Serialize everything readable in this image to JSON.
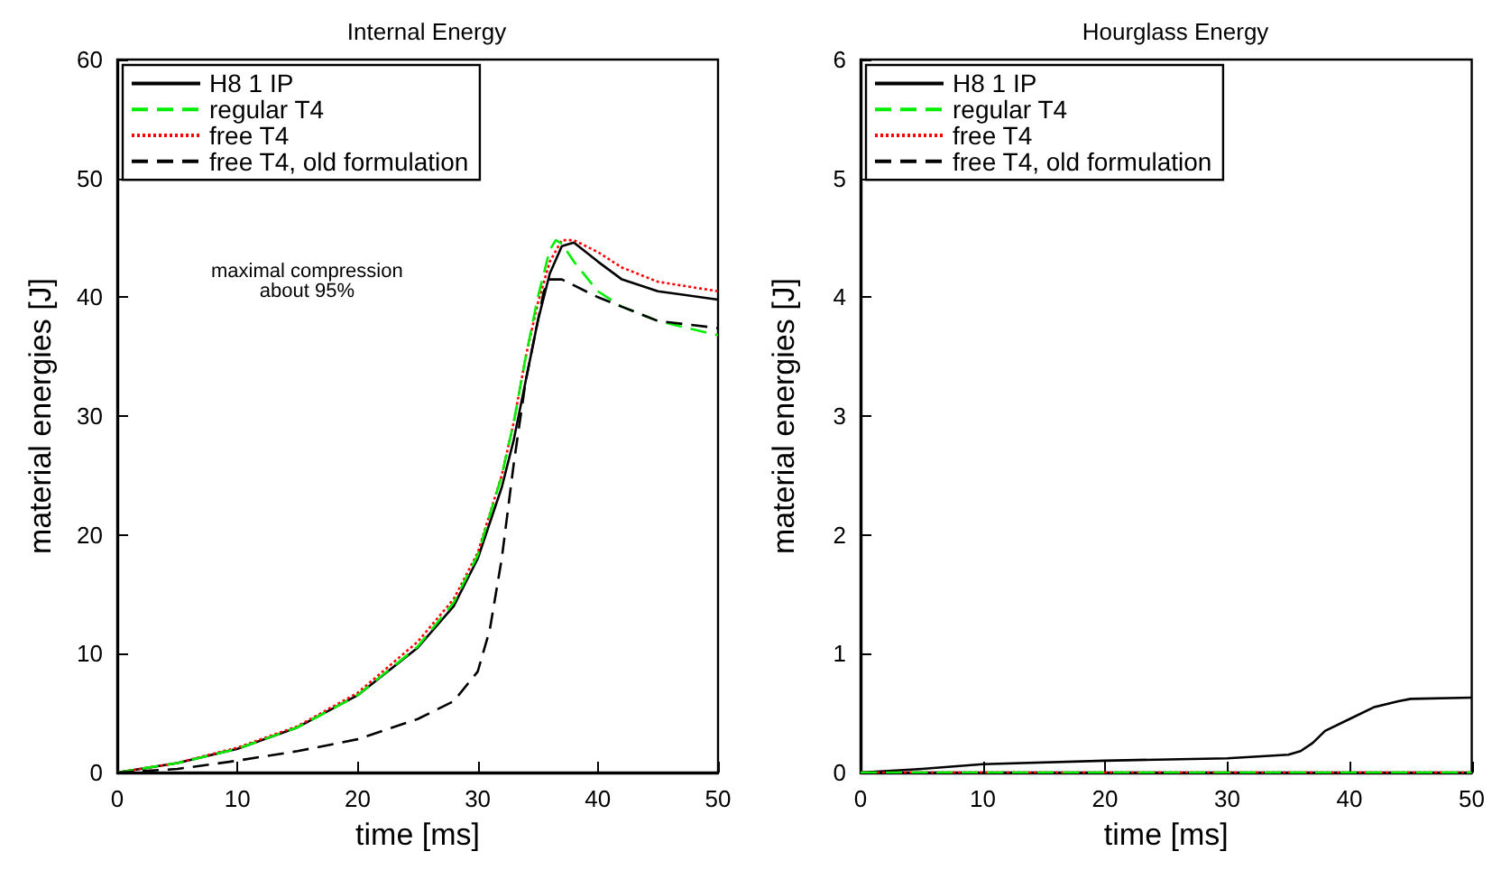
{
  "chart_data": [
    {
      "type": "line",
      "title": "Internal Energy",
      "xlabel": "time [ms]",
      "ylabel": "material energies [J]",
      "xlim": [
        0,
        50
      ],
      "xticks": [
        0,
        10,
        20,
        30,
        40,
        50
      ],
      "ylim": [
        0,
        60
      ],
      "yticks": [
        0,
        10,
        20,
        30,
        40,
        50,
        60
      ],
      "grid": false,
      "legend": "top left",
      "marker": "none",
      "annotations": [
        "maximal compression\nabout 95%"
      ],
      "series": [
        {
          "name": "H8 1 IP",
          "color": "#000000",
          "line_style": "solid",
          "x": [
            0,
            5,
            10,
            15,
            20,
            25,
            28,
            30,
            32,
            33,
            34,
            35,
            36,
            37,
            38,
            40,
            42,
            45,
            50
          ],
          "values": [
            0,
            0.8,
            2,
            3.8,
            6.5,
            10.5,
            14,
            18,
            24,
            28,
            33,
            38,
            42,
            44.3,
            44.6,
            43,
            41.5,
            40.5,
            39.8
          ]
        },
        {
          "name": "regular T4",
          "color": "#00ee00",
          "line_style": "dashed",
          "x": [
            0,
            5,
            10,
            15,
            20,
            25,
            28,
            30,
            32,
            33,
            34,
            35,
            36,
            36.5,
            37,
            38,
            40,
            42,
            45,
            50
          ],
          "values": [
            0,
            0.8,
            2,
            3.8,
            6.5,
            10.6,
            14.3,
            18.3,
            25,
            29.5,
            35,
            40,
            44,
            44.8,
            44.5,
            43,
            40.5,
            39.2,
            38,
            36.8
          ]
        },
        {
          "name": "free T4",
          "color": "#ff0000",
          "line_style": "dotted",
          "x": [
            0,
            5,
            10,
            15,
            20,
            25,
            28,
            30,
            32,
            33,
            34,
            35,
            36,
            37,
            38,
            40,
            42,
            45,
            50
          ],
          "values": [
            0,
            0.8,
            2.1,
            3.9,
            6.7,
            11,
            14.6,
            18.5,
            25,
            29.5,
            35,
            39.5,
            43,
            44.8,
            44.8,
            43.8,
            42.5,
            41.3,
            40.5
          ]
        },
        {
          "name": "free T4, old formulation",
          "color": "#000000",
          "line_style": "dashed",
          "x": [
            0,
            5,
            10,
            15,
            20,
            25,
            28,
            30,
            31,
            32,
            33,
            34,
            35,
            35.5,
            36,
            37,
            38,
            40,
            42,
            45,
            50
          ],
          "values": [
            0,
            0.3,
            1,
            1.8,
            2.8,
            4.5,
            6,
            8.5,
            12,
            18,
            26,
            33,
            38,
            40.5,
            41.5,
            41.5,
            41,
            40,
            39.2,
            38,
            37.4
          ]
        }
      ]
    },
    {
      "type": "line",
      "title": "Hourglass Energy",
      "xlabel": "time [ms]",
      "ylabel": "material energies [J]",
      "xlim": [
        0,
        50
      ],
      "xticks": [
        0,
        10,
        20,
        30,
        40,
        50
      ],
      "ylim": [
        0,
        6
      ],
      "yticks": [
        0,
        1,
        2,
        3,
        4,
        5,
        6
      ],
      "grid": false,
      "legend": "top left",
      "marker": "none",
      "series": [
        {
          "name": "H8 1 IP",
          "color": "#000000",
          "line_style": "solid",
          "x": [
            0,
            5,
            10,
            20,
            30,
            35,
            36,
            37,
            38,
            40,
            42,
            44,
            45,
            50
          ],
          "values": [
            0,
            0.03,
            0.07,
            0.1,
            0.12,
            0.15,
            0.18,
            0.25,
            0.35,
            0.45,
            0.55,
            0.6,
            0.62,
            0.63
          ]
        },
        {
          "name": "regular T4",
          "color": "#00ee00",
          "line_style": "dashed",
          "x": [
            0,
            50
          ],
          "values": [
            0,
            0
          ]
        },
        {
          "name": "free T4",
          "color": "#ff0000",
          "line_style": "dotted",
          "x": [
            0,
            50
          ],
          "values": [
            0,
            0
          ]
        },
        {
          "name": "free T4, old formulation",
          "color": "#000000",
          "line_style": "dashed"
        }
      ]
    }
  ]
}
